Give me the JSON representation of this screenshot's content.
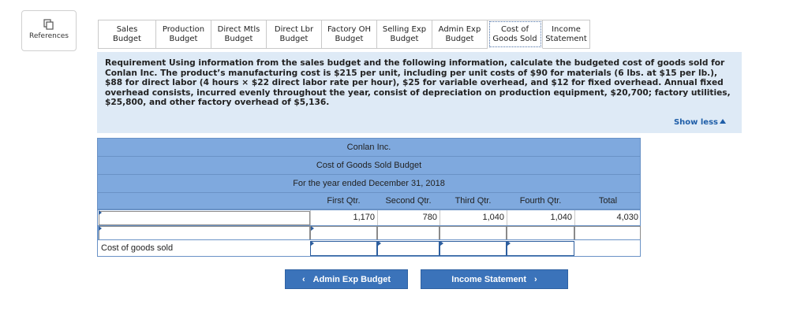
{
  "references": {
    "label": "References",
    "icon": "copy-icon"
  },
  "tabs": [
    {
      "line1": "Sales Budget",
      "line2": ""
    },
    {
      "line1": "Production",
      "line2": "Budget"
    },
    {
      "line1": "Direct Mtls",
      "line2": "Budget"
    },
    {
      "line1": "Direct Lbr",
      "line2": "Budget"
    },
    {
      "line1": "Factory OH",
      "line2": "Budget"
    },
    {
      "line1": "Selling Exp",
      "line2": "Budget"
    },
    {
      "line1": "Admin Exp",
      "line2": "Budget"
    },
    {
      "line1": "Cost of",
      "line2": "Goods Sold"
    },
    {
      "line1": "Income",
      "line2": "Statement"
    }
  ],
  "requirement": {
    "text": "Requirement Using information from the sales budget and the following information, calculate the budgeted cost of goods sold for Conlan Inc. The product’s manufacturing cost is $215 per unit, including per unit costs of $90 for materials (6 lbs. at $15 per lb.), $88 for direct labor (4 hours × $22 direct labor rate per hour), $25 for variable overhead, and $12 for fixed overhead. Annual fixed overhead consists, incurred evenly throughout the year, consist of depreciation on production equipment, $20,700; factory utilities, $25,800, and other factory overhead of $5,136.",
    "show_less": "Show less"
  },
  "sheet": {
    "company": "Conlan Inc.",
    "title": "Cost of Goods Sold Budget",
    "period": "For the year ended December 31, 2018",
    "columns": [
      "First Qtr.",
      "Second Qtr.",
      "Third Qtr.",
      "Fourth Qtr.",
      "Total"
    ],
    "row1": {
      "label": "",
      "values": [
        "1,170",
        "780",
        "1,040",
        "1,040",
        "4,030"
      ]
    },
    "row2": {
      "label": ""
    },
    "row3": {
      "label": "Cost of goods sold"
    }
  },
  "nav": {
    "prev": "Admin Exp Budget",
    "next": "Income Statement"
  },
  "colors": {
    "accent": "#3b73ba",
    "table_header": "#7fa9de",
    "requirement_bg": "#deeaf6"
  }
}
